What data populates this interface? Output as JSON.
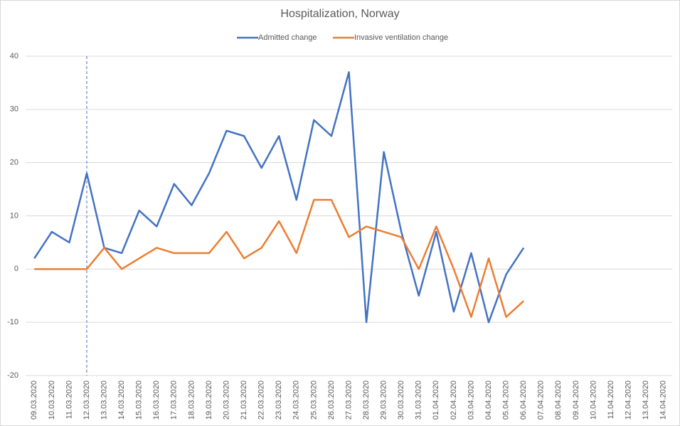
{
  "chart_data": {
    "type": "line",
    "title": "Hospitalization, Norway",
    "categories": [
      "09.03.2020",
      "10.03.2020",
      "11.03.2020",
      "12.03.2020",
      "13.03.2020",
      "14.03.2020",
      "15.03.2020",
      "16.03.2020",
      "17.03.2020",
      "18.03.2020",
      "19.03.2020",
      "20.03.2020",
      "21.03.2020",
      "22.03.2020",
      "23.03.2020",
      "24.03.2020",
      "25.03.2020",
      "26.03.2020",
      "27.03.2020",
      "28.03.2020",
      "29.03.2020",
      "30.03.2020",
      "31.03.2020",
      "01.04.2020",
      "02.04.2020",
      "03.04.2020",
      "04.04.2020",
      "05.04.2020",
      "06.04.2020",
      "07.04.2020",
      "08.04.2020",
      "09.04.2020",
      "10.04.2020",
      "11.04.2020",
      "12.04.2020",
      "13.04.2020",
      "14.04.2020"
    ],
    "series": [
      {
        "name": "Admitted change",
        "color": "#4472c4",
        "values": [
          2,
          7,
          5,
          18,
          4,
          3,
          11,
          8,
          16,
          12,
          18,
          26,
          25,
          19,
          25,
          13,
          28,
          25,
          37,
          -10,
          22,
          7,
          -5,
          7,
          -8,
          3,
          -10,
          -1,
          4,
          null,
          null,
          null,
          null,
          null,
          null,
          null,
          null
        ]
      },
      {
        "name": "Invasive ventilation change",
        "color": "#ed7d31",
        "values": [
          0,
          0,
          0,
          0,
          4,
          0,
          2,
          4,
          3,
          3,
          3,
          7,
          2,
          4,
          9,
          3,
          13,
          13,
          6,
          8,
          7,
          6,
          0,
          8,
          0,
          -9,
          2,
          -9,
          -6,
          null,
          null,
          null,
          null,
          null,
          null,
          null,
          null
        ]
      }
    ],
    "ylim": [
      -20,
      40
    ],
    "yticks": [
      -20,
      -10,
      0,
      10,
      20,
      30,
      40
    ],
    "grid": true,
    "legend": "top"
  }
}
